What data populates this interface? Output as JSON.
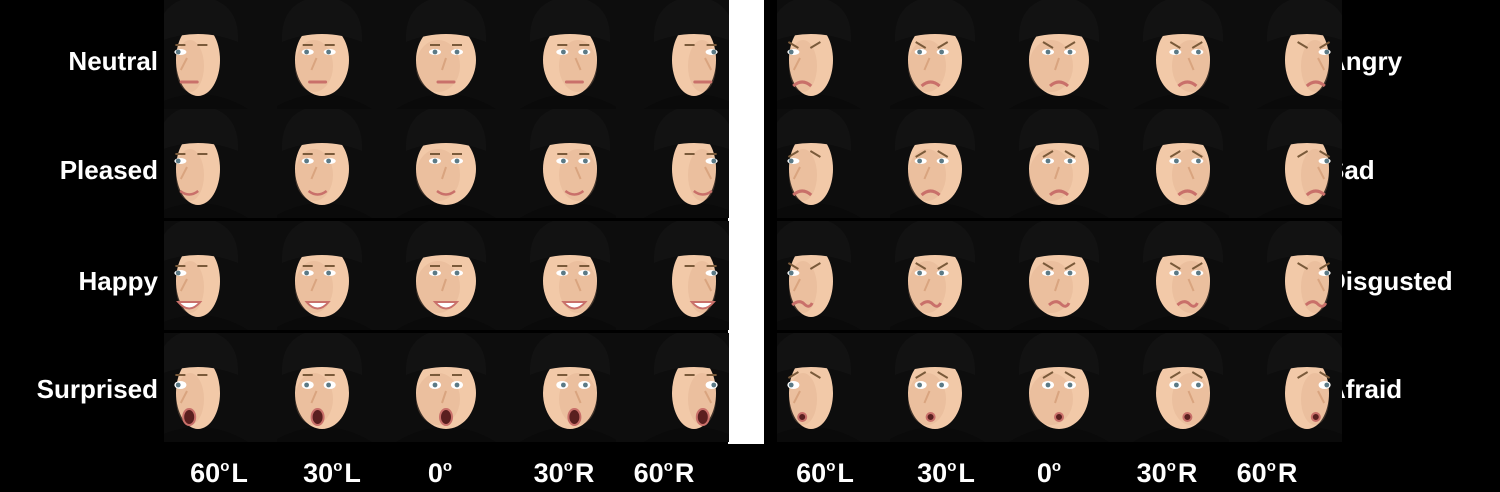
{
  "figure": {
    "left_panel": {
      "emotions": [
        "Neutral",
        "Pleased",
        "Happy",
        "Surprised"
      ]
    },
    "right_panel": {
      "emotions": [
        "Angry",
        "Sad",
        "Disgusted",
        "Afraid"
      ]
    },
    "angles": [
      {
        "num": "60",
        "deg": "o",
        "side": "L"
      },
      {
        "num": "30",
        "deg": "o",
        "side": "L"
      },
      {
        "num": "0",
        "deg": "o",
        "side": ""
      },
      {
        "num": "30",
        "deg": "o",
        "side": "R"
      },
      {
        "num": "60",
        "deg": "o",
        "side": "R"
      }
    ]
  },
  "photo_grid": {
    "yaw_order": [
      "60-left",
      "30-left",
      "frontal",
      "30-right",
      "60-right"
    ],
    "left_expressions": [
      "neutral",
      "pleased",
      "happy",
      "surprised"
    ],
    "right_expressions": [
      "angry",
      "sad",
      "disgusted",
      "afraid"
    ]
  },
  "colors": {
    "background": "#000000",
    "divider": "#ffffff",
    "text": "#ffffff",
    "skin": "#f2c9a8",
    "skin_shade": "#d9a47f",
    "hat": "#121212",
    "shirt": "#0a0a0a",
    "lips": "#c9706a",
    "eyes": "#5b7a86"
  },
  "icons": {
    "face": "child-face-photo"
  }
}
